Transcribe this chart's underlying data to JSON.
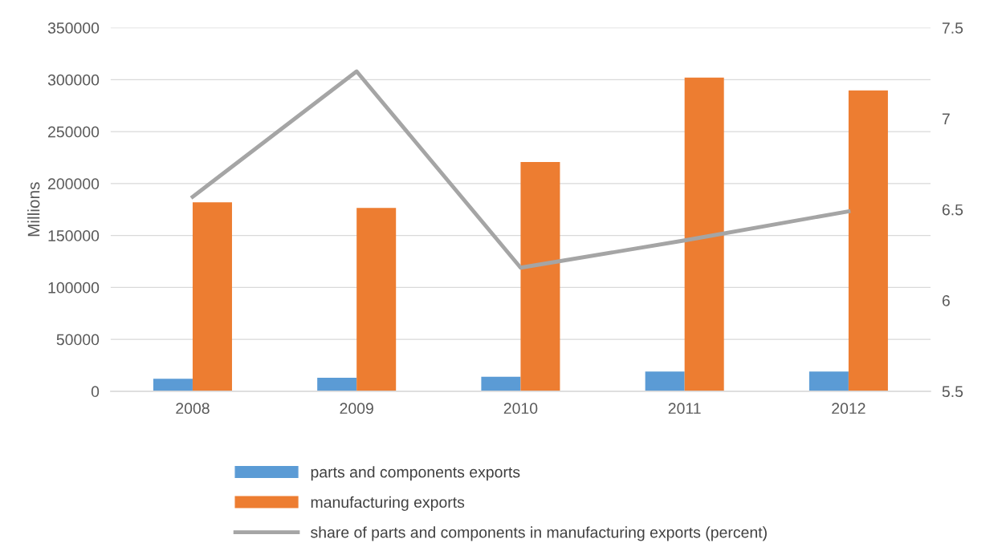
{
  "chart_data": {
    "type": "bar",
    "ylabel": "Millions",
    "categories": [
      "2008",
      "2009",
      "2010",
      "2011",
      "2012"
    ],
    "series": [
      {
        "name": "parts and components exports",
        "color": "#5b9bd5",
        "values": [
          12000,
          13000,
          14000,
          19000,
          19000
        ]
      },
      {
        "name": "manufacturing exports",
        "color": "#ed7d31",
        "values": [
          182000,
          176500,
          220700,
          302000,
          289600
        ]
      },
      {
        "name": "share of parts and components in manufacturing exports (percent)",
        "type": "line",
        "axis": "y2",
        "color": "#a5a5a5",
        "values": [
          6.57,
          7.26,
          6.18,
          6.33,
          6.49
        ]
      }
    ],
    "ylim": [
      0,
      350000
    ],
    "yticks": [
      0,
      50000,
      100000,
      150000,
      200000,
      250000,
      300000,
      350000
    ],
    "y2lim": [
      5.5,
      7.5
    ],
    "y2ticks": [
      5.5,
      6,
      6.5,
      7,
      7.5
    ],
    "grid": "y",
    "legend": "bottom",
    "marker": "none"
  }
}
